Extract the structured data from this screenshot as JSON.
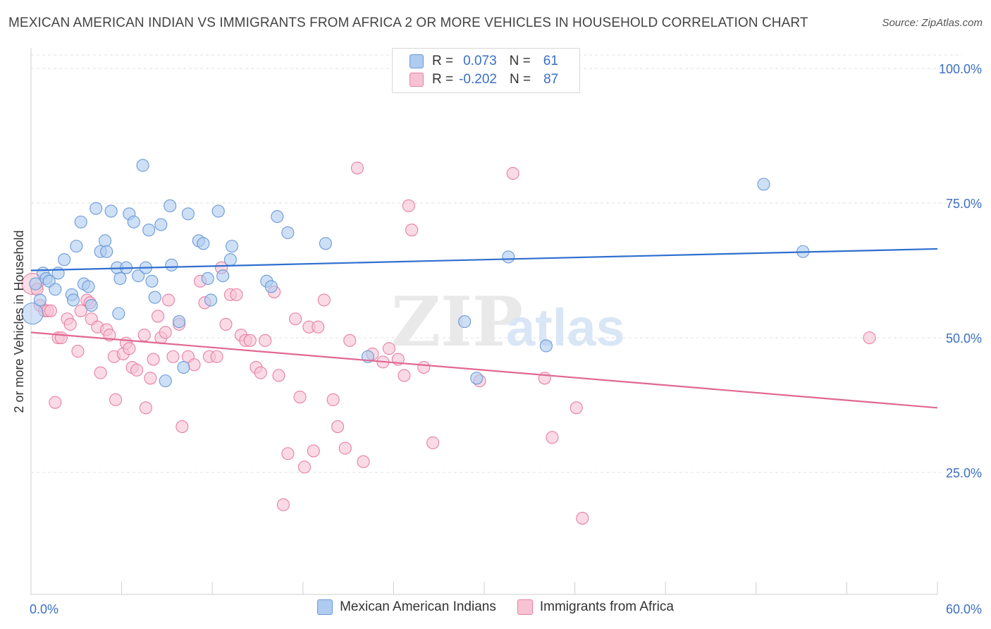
{
  "title": "MEXICAN AMERICAN INDIAN VS IMMIGRANTS FROM AFRICA 2 OR MORE VEHICLES IN HOUSEHOLD CORRELATION CHART",
  "source": "Source: ZipAtlas.com",
  "watermark": {
    "left": "ZIP",
    "right": "atlas"
  },
  "colors": {
    "blue_fill": "#aecbf0",
    "blue_stroke": "#6b9ad8",
    "blue_line": "#2f6fcf",
    "pink_fill": "#f7c3d3",
    "pink_stroke": "#e87fa3",
    "pink_line": "#e06891",
    "tick_label": "#3a6fc4",
    "grid": "#e2e2e2"
  },
  "stats": {
    "blue": {
      "r_label": "R =",
      "r_value": "0.073",
      "n_label": "N =",
      "n_value": "61"
    },
    "pink": {
      "r_label": "R =",
      "r_value": "-0.202",
      "n_label": "N =",
      "n_value": "87"
    }
  },
  "legend": {
    "blue": "Mexican American Indians",
    "pink": "Immigrants from Africa"
  },
  "chart_data": {
    "type": "scatter",
    "title": "MEXICAN AMERICAN INDIAN VS IMMIGRANTS FROM AFRICA 2 OR MORE VEHICLES IN HOUSEHOLD CORRELATION CHART",
    "xlabel": "",
    "ylabel": "2 or more Vehicles in Household",
    "xlim": [
      0,
      60
    ],
    "ylim": [
      0,
      105
    ],
    "x_tick_labels": [
      "0.0%",
      "60.0%"
    ],
    "y_ticks": [
      25,
      50,
      75,
      100
    ],
    "y_tick_labels": [
      "25.0%",
      "50.0%",
      "75.0%",
      "100.0%"
    ],
    "grid": true,
    "legend_position": "bottom",
    "series": [
      {
        "name": "Mexican American Indians",
        "color": "#aecbf0",
        "trend": {
          "x": [
            0,
            60
          ],
          "y": [
            62.5,
            66.5
          ]
        },
        "points": [
          [
            0.1,
            54.5
          ],
          [
            0.3,
            60.0
          ],
          [
            0.6,
            57.0
          ],
          [
            0.8,
            62.0
          ],
          [
            1.0,
            61.0
          ],
          [
            1.2,
            60.5
          ],
          [
            1.6,
            59.0
          ],
          [
            1.8,
            62.0
          ],
          [
            2.2,
            64.5
          ],
          [
            2.7,
            58.0
          ],
          [
            2.8,
            57.0
          ],
          [
            3.0,
            67.0
          ],
          [
            3.3,
            71.5
          ],
          [
            3.5,
            60.0
          ],
          [
            3.8,
            59.5
          ],
          [
            4.0,
            56.0
          ],
          [
            4.3,
            74.0
          ],
          [
            4.6,
            66.0
          ],
          [
            4.9,
            68.0
          ],
          [
            5.0,
            66.0
          ],
          [
            5.3,
            73.5
          ],
          [
            5.7,
            63.0
          ],
          [
            5.8,
            54.5
          ],
          [
            5.9,
            61.0
          ],
          [
            6.3,
            63.0
          ],
          [
            6.5,
            73.0
          ],
          [
            6.8,
            71.5
          ],
          [
            7.1,
            61.5
          ],
          [
            7.4,
            82.0
          ],
          [
            7.6,
            63.0
          ],
          [
            7.8,
            70.0
          ],
          [
            8.0,
            60.5
          ],
          [
            8.2,
            57.5
          ],
          [
            8.6,
            71.0
          ],
          [
            8.9,
            42.0
          ],
          [
            9.2,
            74.5
          ],
          [
            9.3,
            63.5
          ],
          [
            9.8,
            53.0
          ],
          [
            10.1,
            44.5
          ],
          [
            10.4,
            73.0
          ],
          [
            11.1,
            68.0
          ],
          [
            11.4,
            67.5
          ],
          [
            11.7,
            61.0
          ],
          [
            11.9,
            57.0
          ],
          [
            12.4,
            73.5
          ],
          [
            12.7,
            61.5
          ],
          [
            13.2,
            64.5
          ],
          [
            13.3,
            67.0
          ],
          [
            15.6,
            60.5
          ],
          [
            15.9,
            59.5
          ],
          [
            16.3,
            72.5
          ],
          [
            17.0,
            69.5
          ],
          [
            19.5,
            67.5
          ],
          [
            22.3,
            46.5
          ],
          [
            26.2,
            100.0
          ],
          [
            28.7,
            53.0
          ],
          [
            29.5,
            42.5
          ],
          [
            31.6,
            65.0
          ],
          [
            34.1,
            48.5
          ],
          [
            48.5,
            78.5
          ],
          [
            51.1,
            66.0
          ]
        ]
      },
      {
        "name": "Immigrants from Africa",
        "color": "#f7c3d3",
        "trend": {
          "x": [
            0,
            60
          ],
          "y": [
            51.0,
            37.0
          ]
        },
        "points": [
          [
            0.1,
            60.0
          ],
          [
            0.4,
            59.0
          ],
          [
            0.6,
            56.0
          ],
          [
            0.9,
            55.0
          ],
          [
            1.1,
            55.0
          ],
          [
            1.3,
            55.0
          ],
          [
            1.6,
            38.0
          ],
          [
            1.8,
            50.0
          ],
          [
            2.0,
            50.0
          ],
          [
            2.4,
            53.5
          ],
          [
            2.6,
            52.5
          ],
          [
            3.1,
            47.5
          ],
          [
            3.3,
            55.0
          ],
          [
            3.7,
            57.0
          ],
          [
            3.9,
            56.5
          ],
          [
            4.0,
            53.5
          ],
          [
            4.4,
            52.0
          ],
          [
            4.6,
            43.5
          ],
          [
            5.0,
            51.5
          ],
          [
            5.2,
            50.5
          ],
          [
            5.5,
            46.5
          ],
          [
            5.6,
            38.5
          ],
          [
            6.1,
            47.0
          ],
          [
            6.3,
            49.0
          ],
          [
            6.5,
            48.0
          ],
          [
            6.7,
            44.5
          ],
          [
            7.0,
            44.0
          ],
          [
            7.5,
            50.5
          ],
          [
            7.6,
            37.0
          ],
          [
            7.9,
            42.5
          ],
          [
            8.1,
            46.0
          ],
          [
            8.4,
            54.0
          ],
          [
            8.6,
            50.0
          ],
          [
            8.9,
            51.0
          ],
          [
            9.1,
            57.0
          ],
          [
            9.4,
            46.5
          ],
          [
            9.8,
            52.5
          ],
          [
            10.0,
            33.5
          ],
          [
            10.4,
            46.5
          ],
          [
            10.8,
            45.0
          ],
          [
            11.2,
            60.5
          ],
          [
            11.5,
            56.5
          ],
          [
            11.8,
            46.5
          ],
          [
            12.3,
            46.5
          ],
          [
            12.6,
            63.0
          ],
          [
            12.9,
            52.5
          ],
          [
            13.2,
            58.0
          ],
          [
            13.6,
            58.0
          ],
          [
            13.9,
            50.5
          ],
          [
            14.2,
            49.5
          ],
          [
            14.5,
            49.5
          ],
          [
            14.9,
            44.5
          ],
          [
            15.2,
            43.5
          ],
          [
            15.5,
            49.5
          ],
          [
            16.1,
            58.5
          ],
          [
            16.4,
            43.0
          ],
          [
            16.7,
            19.0
          ],
          [
            17.0,
            28.5
          ],
          [
            17.5,
            53.5
          ],
          [
            17.8,
            39.0
          ],
          [
            18.1,
            26.0
          ],
          [
            18.4,
            52.0
          ],
          [
            18.7,
            29.0
          ],
          [
            19.0,
            52.0
          ],
          [
            19.4,
            57.0
          ],
          [
            20.0,
            38.5
          ],
          [
            20.3,
            33.5
          ],
          [
            20.8,
            29.5
          ],
          [
            21.1,
            49.5
          ],
          [
            21.6,
            81.5
          ],
          [
            22.0,
            27.0
          ],
          [
            22.6,
            47.0
          ],
          [
            23.3,
            45.5
          ],
          [
            23.7,
            48.0
          ],
          [
            24.3,
            46.0
          ],
          [
            24.7,
            43.0
          ],
          [
            25.0,
            74.5
          ],
          [
            25.2,
            70.0
          ],
          [
            26.0,
            44.5
          ],
          [
            26.6,
            30.5
          ],
          [
            29.7,
            42.0
          ],
          [
            31.9,
            80.5
          ],
          [
            34.0,
            42.5
          ],
          [
            34.5,
            31.5
          ],
          [
            36.1,
            37.0
          ],
          [
            36.5,
            16.5
          ],
          [
            55.5,
            50.0
          ]
        ]
      }
    ]
  }
}
